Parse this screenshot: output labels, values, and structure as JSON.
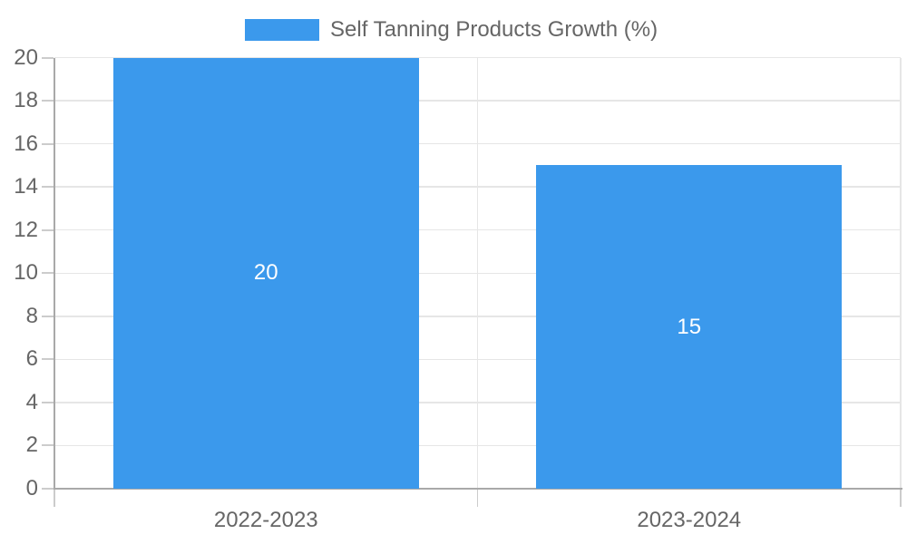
{
  "legend": {
    "label": "Self Tanning Products Growth (%)"
  },
  "colors": {
    "bar": "#3b99ec",
    "legend_text": "#666666",
    "axis_text": "#666666",
    "axis_line": "#a9a9a9",
    "gridline": "#e6e6e6",
    "tick": "#cccccc",
    "bar_label": "#ffffff",
    "background": "#ffffff"
  },
  "chart_data": {
    "type": "bar",
    "title": "Self Tanning Products Growth (%)",
    "series_name": "Self Tanning Products Growth (%)",
    "categories": [
      "2022-2023",
      "2023-2024"
    ],
    "values": [
      20,
      15
    ],
    "bar_labels": [
      "20",
      "15"
    ],
    "xlabel": "",
    "ylabel": "",
    "ylim": [
      0,
      20
    ],
    "ytick_step": 2,
    "yticks": [
      0,
      2,
      4,
      6,
      8,
      10,
      12,
      14,
      16,
      18,
      20
    ],
    "grid": true,
    "legend_position": "top-center",
    "bar_label_position": "center"
  }
}
